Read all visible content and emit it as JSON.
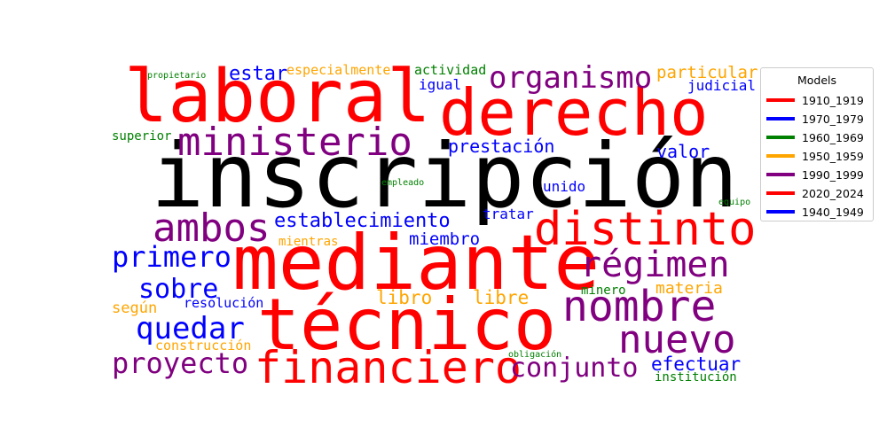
{
  "chart_data": {
    "type": "wordcloud",
    "legend": {
      "title": "Models",
      "placement": "right",
      "entries": [
        {
          "name": "1910_1919",
          "color": "#ff0000"
        },
        {
          "name": "1970_1979",
          "color": "#0000ff"
        },
        {
          "name": "1960_1969",
          "color": "#008000"
        },
        {
          "name": "1950_1959",
          "color": "#ffa500"
        },
        {
          "name": "1990_1999",
          "color": "#800080"
        },
        {
          "name": "2020_2024",
          "color": "#ff0000"
        },
        {
          "name": "1940_1949",
          "color": "#0000ff"
        }
      ]
    },
    "words": [
      {
        "text": "inscripción",
        "color": "#000000"
      },
      {
        "text": "mediante",
        "color": "#ff0000"
      },
      {
        "text": "técnico",
        "color": "#ff0000"
      },
      {
        "text": "laboral",
        "color": "#ff0000"
      },
      {
        "text": "derecho",
        "color": "#ff0000"
      },
      {
        "text": "financiero",
        "color": "#ff0000"
      },
      {
        "text": "distinto",
        "color": "#ff0000"
      },
      {
        "text": "ministerio",
        "color": "#800080"
      },
      {
        "text": "nombre",
        "color": "#800080"
      },
      {
        "text": "nuevo",
        "color": "#800080"
      },
      {
        "text": "régimen",
        "color": "#800080"
      },
      {
        "text": "organismo",
        "color": "#800080"
      },
      {
        "text": "ambos",
        "color": "#800080"
      },
      {
        "text": "proyecto",
        "color": "#800080"
      },
      {
        "text": "conjunto",
        "color": "#800080"
      },
      {
        "text": "quedar",
        "color": "#0000ff"
      },
      {
        "text": "primero",
        "color": "#0000ff"
      },
      {
        "text": "sobre",
        "color": "#0000ff"
      },
      {
        "text": "establecimiento",
        "color": "#0000ff"
      },
      {
        "text": "efectuar",
        "color": "#0000ff"
      },
      {
        "text": "estar",
        "color": "#0000ff"
      },
      {
        "text": "prestación",
        "color": "#0000ff"
      },
      {
        "text": "miembro",
        "color": "#0000ff"
      },
      {
        "text": "valor",
        "color": "#0000ff"
      },
      {
        "text": "judicial",
        "color": "#0000ff"
      },
      {
        "text": "igual",
        "color": "#0000ff"
      },
      {
        "text": "tratar",
        "color": "#0000ff"
      },
      {
        "text": "unido",
        "color": "#0000ff"
      },
      {
        "text": "resolución",
        "color": "#0000ff"
      },
      {
        "text": "libro",
        "color": "#ffa500"
      },
      {
        "text": "libre",
        "color": "#ffa500"
      },
      {
        "text": "materia",
        "color": "#ffa500"
      },
      {
        "text": "particular",
        "color": "#ffa500"
      },
      {
        "text": "especialmente",
        "color": "#ffa500"
      },
      {
        "text": "según",
        "color": "#ffa500"
      },
      {
        "text": "construcción",
        "color": "#ffa500"
      },
      {
        "text": "mientras",
        "color": "#ffa500"
      },
      {
        "text": "actividad",
        "color": "#008000"
      },
      {
        "text": "superior",
        "color": "#008000"
      },
      {
        "text": "minero",
        "color": "#008000"
      },
      {
        "text": "institución",
        "color": "#008000"
      },
      {
        "text": "empleado",
        "color": "#008000"
      },
      {
        "text": "obligación",
        "color": "#008000"
      },
      {
        "text": "equipo",
        "color": "#008000"
      },
      {
        "text": "propietario",
        "color": "#008000"
      }
    ]
  }
}
